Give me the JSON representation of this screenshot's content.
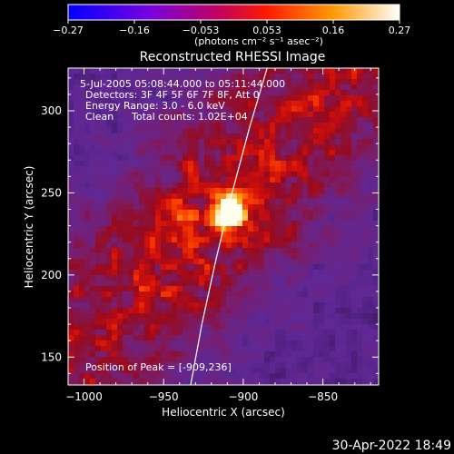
{
  "colorbar": {
    "tick_labels": [
      "-0.27",
      "-0.16",
      "-0.053",
      "0.053",
      "0.16",
      "0.27"
    ],
    "range": [
      -0.27,
      0.27
    ],
    "units": "(photons cm⁻² s⁻¹ asec⁻²)"
  },
  "image": {
    "title": "Reconstructed RHESSI Image",
    "time_range": "5-Jul-2005 05:08:44.000 to 05:11:44.000",
    "detectors": "Detectors: 3F 4F 5F 6F 7F 8F, Att 0",
    "energy_range": "Energy Range: 3.0 - 6.0 keV",
    "algorithm": "Clean",
    "total_counts": "Total counts: 1.02E+04",
    "peak_position": "Position of Peak = [-909,236]"
  },
  "chart_data": {
    "type": "heatmap",
    "title": "Reconstructed RHESSI Image",
    "xlabel": "Heliocentric X (arcsec)",
    "ylabel": "Heliocentric Y (arcsec)",
    "xlim": [
      -1010,
      -815
    ],
    "ylim": [
      133,
      326
    ],
    "xticks": [
      -1000,
      -950,
      -900,
      -850
    ],
    "yticks": [
      150,
      200,
      250,
      300
    ],
    "xtick_labels": [
      "−1000",
      "−950",
      "−900",
      "−850"
    ],
    "ytick_labels": [
      "150",
      "200",
      "250",
      "300"
    ],
    "colormap": "fire (blue-purple-red-yellow-white)",
    "peak": {
      "x": -909,
      "y": 236,
      "value": 0.27
    },
    "limb_curve": [
      [
        -933,
        133
      ],
      [
        -926,
        170
      ],
      [
        -917,
        210
      ],
      [
        -907,
        250
      ],
      [
        -896,
        290
      ],
      [
        -885,
        326
      ]
    ]
  },
  "footer": {
    "timestamp": "30-Apr-2022 18:49"
  }
}
